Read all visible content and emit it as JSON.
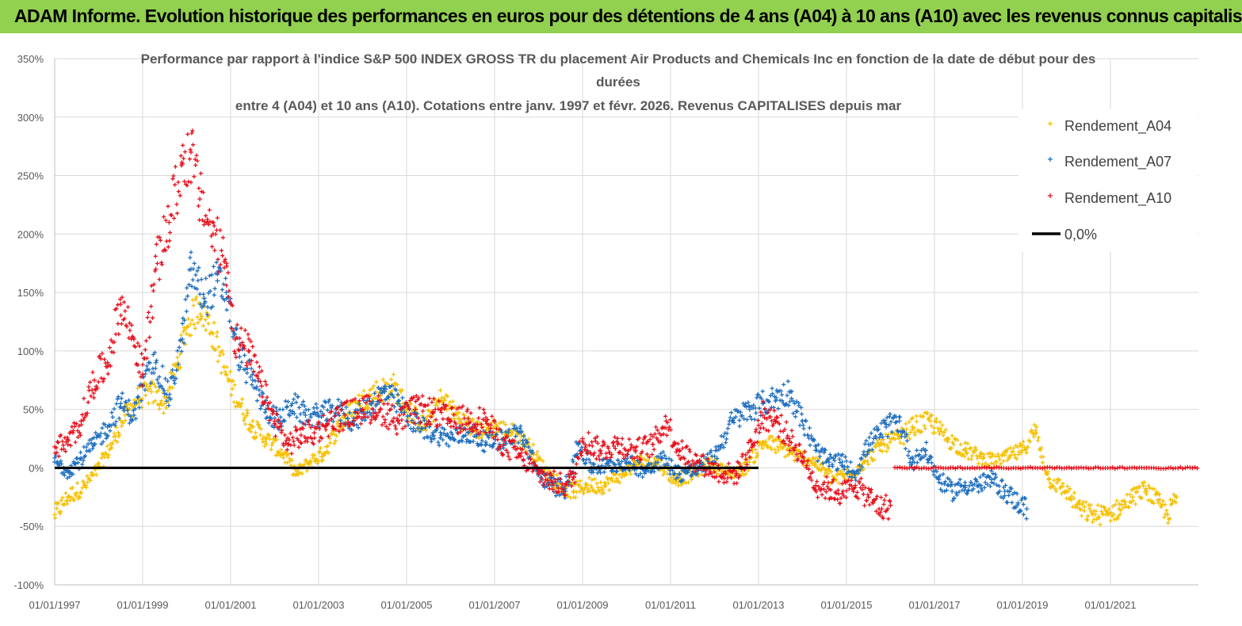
{
  "banner": {
    "title": "ADAM Informe. Evolution historique des performances en euros pour des détentions de 4 ans (A04) à 10 ans (A10) avec les revenus connus capitalisés"
  },
  "chart_data": {
    "type": "scatter",
    "title_lines": [
      "Performance par rapport à l'indice S&P 500 INDEX GROSS TR  du placement Air Products and Chemicals Inc en fonction de la date de début pour des",
      "durées",
      "entre 4 (A04) et 10 ans (A10). Cotations entre janv. 1997 et févr. 2026. Revenus CAPITALISES depuis mar"
    ],
    "x_tick_labels": [
      "01/01/1997",
      "01/01/1999",
      "01/01/2001",
      "01/01/2003",
      "01/01/2005",
      "01/01/2007",
      "01/01/2009",
      "01/01/2011",
      "01/01/2013",
      "01/01/2015",
      "01/01/2017",
      "01/01/2019",
      "01/01/2021"
    ],
    "x_range": [
      1997.0,
      2023.0
    ],
    "y_tick_labels": [
      "350%",
      "300%",
      "250%",
      "200%",
      "150%",
      "100%",
      "50%",
      "0%",
      "-50%",
      "-100%"
    ],
    "ylim": [
      -100,
      350
    ],
    "legend": {
      "position": "top-right",
      "entries": [
        {
          "label": "Rendement_A04",
          "marker": "+",
          "color": "#f5c000"
        },
        {
          "label": "Rendement_A07",
          "marker": "+",
          "color": "#1f6fbf"
        },
        {
          "label": "Rendement_A10",
          "marker": "+",
          "color": "#e8101c"
        },
        {
          "label": "0,0%",
          "marker": "line",
          "color": "#000000"
        }
      ]
    },
    "series": [
      {
        "name": "Rendement_A04",
        "color": "#f5c000",
        "x": [
          1997.0,
          1997.3,
          1997.7,
          1998.0,
          1998.3,
          1998.6,
          1998.9,
          1999.2,
          1999.5,
          1999.8,
          2000.0,
          2000.3,
          2000.6,
          2000.9,
          2001.2,
          2001.5,
          2001.8,
          2002.2,
          2002.5,
          2002.8,
          2003.1,
          2003.5,
          2003.9,
          2004.3,
          2004.7,
          2005.0,
          2005.4,
          2005.8,
          2006.2,
          2006.6,
          2007.0,
          2007.4,
          2007.8,
          2008.2,
          2008.5,
          2008.8,
          2009.1,
          2009.5,
          2009.9,
          2010.3,
          2010.7,
          2011.1,
          2011.5,
          2011.9,
          2012.3,
          2012.7,
          2013.1,
          2013.5,
          2013.9,
          2014.3,
          2014.7,
          2015.1,
          2015.4,
          2015.8,
          2016.2,
          2016.5,
          2016.9,
          2017.3,
          2017.7,
          2018.1,
          2018.4,
          2018.7,
          2019.0,
          2019.3,
          2019.6,
          2020.0,
          2020.3,
          2020.6,
          2020.9,
          2021.2,
          2021.5,
          2021.8,
          2022.1,
          2022.3,
          2022.5
        ],
        "y": [
          -40,
          -25,
          -15,
          0,
          20,
          45,
          60,
          65,
          55,
          90,
          120,
          140,
          115,
          80,
          55,
          35,
          25,
          12,
          -5,
          5,
          12,
          38,
          55,
          65,
          70,
          52,
          35,
          60,
          42,
          32,
          35,
          30,
          18,
          -5,
          -15,
          -20,
          -15,
          -15,
          -5,
          5,
          5,
          -10,
          -5,
          5,
          -5,
          0,
          22,
          18,
          10,
          5,
          -10,
          -5,
          5,
          20,
          25,
          35,
          40,
          25,
          15,
          8,
          5,
          10,
          15,
          32,
          -10,
          -20,
          -35,
          -40,
          -40,
          -35,
          -25,
          -18,
          -30,
          -40,
          -25
        ]
      },
      {
        "name": "Rendement_A07",
        "color": "#1f6fbf",
        "x": [
          1997.0,
          1997.3,
          1997.6,
          1997.9,
          1998.2,
          1998.5,
          1998.8,
          1999.0,
          1999.3,
          1999.6,
          1999.9,
          2000.1,
          2000.4,
          2000.7,
          2000.9,
          2001.2,
          2001.5,
          2001.8,
          2002.1,
          2002.4,
          2002.7,
          2003.0,
          2003.4,
          2003.8,
          2004.2,
          2004.5,
          2004.8,
          2005.2,
          2005.6,
          2006.0,
          2006.4,
          2006.8,
          2007.2,
          2007.6,
          2008.0,
          2008.3,
          2008.6,
          2008.9,
          2009.2,
          2009.6,
          2010.0,
          2010.4,
          2010.8,
          2011.2,
          2011.6,
          2012.0,
          2012.4,
          2012.8,
          2013.1,
          2013.4,
          2013.7,
          2014.0,
          2014.3,
          2014.6,
          2014.9,
          2015.2,
          2015.5,
          2015.9,
          2016.2,
          2016.5,
          2016.8,
          2017.1,
          2017.4,
          2017.7,
          2018.0,
          2018.3,
          2018.6,
          2018.9,
          2019.1
        ],
        "y": [
          5,
          -2,
          8,
          20,
          35,
          55,
          45,
          70,
          90,
          60,
          110,
          170,
          145,
          160,
          150,
          95,
          75,
          50,
          40,
          55,
          45,
          45,
          50,
          40,
          55,
          65,
          55,
          38,
          30,
          25,
          30,
          22,
          25,
          30,
          -5,
          -15,
          -18,
          20,
          0,
          2,
          5,
          -2,
          8,
          -5,
          -2,
          10,
          40,
          50,
          55,
          60,
          65,
          40,
          15,
          5,
          5,
          -5,
          20,
          35,
          40,
          5,
          15,
          -10,
          -20,
          -15,
          -15,
          -10,
          -20,
          -30,
          -35
        ]
      },
      {
        "name": "Rendement_A10",
        "color": "#e8101c",
        "x": [
          1997.0,
          1997.3,
          1997.6,
          1997.9,
          1998.2,
          1998.5,
          1998.8,
          1999.0,
          1999.3,
          1999.6,
          1999.9,
          2000.1,
          2000.3,
          2000.6,
          2000.9,
          2001.1,
          2001.4,
          2001.7,
          2002.0,
          2002.3,
          2002.6,
          2002.9,
          2003.2,
          2003.6,
          2004.0,
          2004.4,
          2004.8,
          2005.2,
          2005.6,
          2006.0,
          2006.4,
          2006.8,
          2007.2,
          2007.6,
          2008.0,
          2008.3,
          2008.6,
          2008.8,
          2009.0,
          2009.4,
          2009.8,
          2010.2,
          2010.6,
          2010.9,
          2011.2,
          2011.6,
          2011.9,
          2012.2,
          2012.5,
          2012.8,
          2013.1,
          2013.4,
          2013.7,
          2014.0,
          2014.3,
          2014.6,
          2014.9,
          2015.2,
          2015.5,
          2015.8,
          2016.0
        ],
        "y": [
          18,
          20,
          40,
          75,
          90,
          140,
          110,
          80,
          170,
          210,
          260,
          270,
          230,
          200,
          175,
          110,
          100,
          70,
          40,
          20,
          28,
          30,
          38,
          45,
          50,
          50,
          40,
          50,
          48,
          40,
          42,
          40,
          20,
          10,
          -5,
          -12,
          -15,
          -8,
          25,
          15,
          20,
          15,
          20,
          40,
          15,
          5,
          0,
          -5,
          -5,
          15,
          45,
          40,
          25,
          10,
          -15,
          -18,
          -22,
          -15,
          -25,
          -35,
          -32
        ]
      },
      {
        "name": "Rendement_A10_tail",
        "color": "#e8101c",
        "x": [
          2016.1,
          2023.0
        ],
        "y": [
          0,
          0
        ]
      },
      {
        "name": "0,0%",
        "color": "#000000",
        "x": [
          1997.0,
          2013.0
        ],
        "y": [
          0,
          0
        ]
      }
    ]
  }
}
